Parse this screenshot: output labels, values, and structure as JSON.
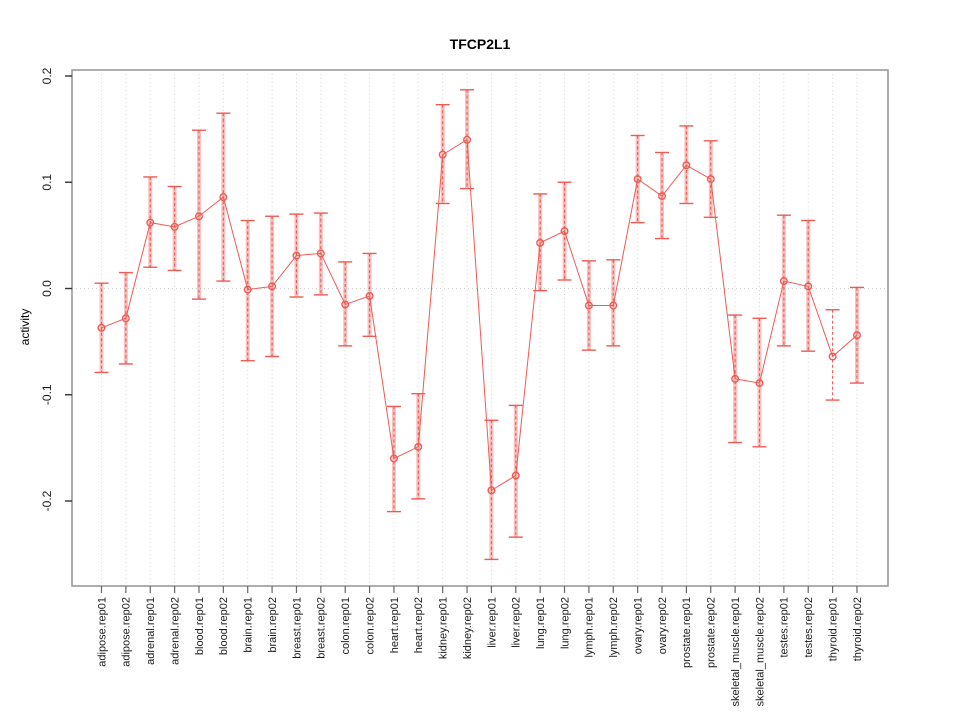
{
  "chart_data": {
    "type": "line",
    "title": "TFCP2L1",
    "xlabel": "",
    "ylabel": "activity",
    "ylim": [
      -0.28,
      0.207
    ],
    "yticks": [
      0.2,
      0.1,
      0.0,
      -0.1,
      -0.2
    ],
    "ytick_labels": [
      "0.2",
      "0.1",
      "0.0",
      "-0.1",
      "-0.2"
    ],
    "grid": "vertical dotted gridline at every category; dotted horizontal line at y=0",
    "legend": "none",
    "colors": {
      "point_line": "#ef5a52",
      "error_band": "rgba(240,90,85,0.38)",
      "gridline": "#d9d9d9",
      "zero_line": "#d0d0d0",
      "frame": "#9a9a9a",
      "tick": "#555555",
      "text": "#1a1a1a"
    },
    "categories": [
      "adipose.rep01",
      "adipose.rep02",
      "adrenal.rep01",
      "adrenal.rep02",
      "blood.rep01",
      "blood.rep02",
      "brain.rep01",
      "brain.rep02",
      "breast.rep01",
      "breast.rep02",
      "colon.rep01",
      "colon.rep02",
      "heart.rep01",
      "heart.rep02",
      "kidney.rep01",
      "kidney.rep02",
      "liver.rep01",
      "liver.rep02",
      "lung.rep01",
      "lung.rep02",
      "lymph.rep01",
      "lymph.rep02",
      "ovary.rep01",
      "ovary.rep02",
      "prostate.rep01",
      "prostate.rep02",
      "skeletal_muscle.rep01",
      "skeletal_muscle.rep02",
      "testes.rep01",
      "testes.rep02",
      "thyroid.rep01",
      "thyroid.rep02"
    ],
    "series": [
      {
        "name": "activity",
        "marker": "open-circle",
        "values": [
          -0.037,
          -0.028,
          0.062,
          0.058,
          0.068,
          0.086,
          -0.001,
          0.002,
          0.031,
          0.033,
          -0.015,
          -0.007,
          -0.16,
          -0.149,
          0.126,
          0.14,
          -0.19,
          -0.176,
          0.043,
          0.054,
          -0.016,
          -0.016,
          0.103,
          0.087,
          0.116,
          0.103,
          -0.085,
          -0.089,
          0.007,
          0.002,
          -0.064,
          -0.044
        ],
        "ci_high": [
          0.005,
          0.015,
          0.105,
          0.096,
          0.149,
          0.165,
          0.064,
          0.068,
          0.07,
          0.071,
          0.025,
          0.033,
          -0.111,
          -0.099,
          0.173,
          0.187,
          -0.124,
          -0.11,
          0.089,
          0.1,
          0.026,
          0.027,
          0.144,
          0.128,
          0.153,
          0.139,
          -0.025,
          -0.028,
          0.069,
          0.064,
          -0.02,
          0.001
        ],
        "ci_low": [
          -0.079,
          -0.071,
          0.02,
          0.017,
          -0.01,
          0.007,
          -0.068,
          -0.064,
          -0.008,
          -0.006,
          -0.054,
          -0.045,
          -0.21,
          -0.198,
          0.08,
          0.094,
          -0.255,
          -0.234,
          -0.002,
          0.008,
          -0.058,
          -0.054,
          0.062,
          0.047,
          0.08,
          0.067,
          -0.145,
          -0.149,
          -0.054,
          -0.059,
          -0.105,
          -0.089
        ],
        "band_shown": [
          true,
          true,
          true,
          true,
          true,
          true,
          true,
          true,
          true,
          true,
          true,
          true,
          true,
          true,
          true,
          true,
          true,
          true,
          true,
          true,
          true,
          true,
          true,
          true,
          true,
          true,
          true,
          true,
          true,
          true,
          false,
          true
        ]
      }
    ]
  }
}
